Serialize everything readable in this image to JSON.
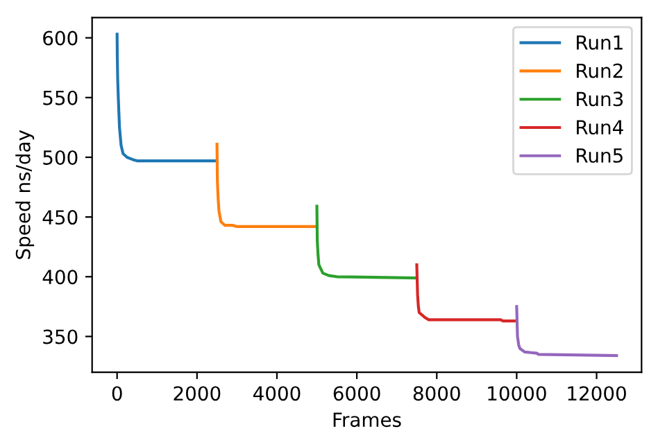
{
  "chart_data": {
    "type": "line",
    "xlabel": "Frames",
    "ylabel": "Speed ns/day",
    "xlim": [
      -625,
      13125
    ],
    "ylim": [
      320,
      617
    ],
    "xticks": [
      0,
      2000,
      4000,
      6000,
      8000,
      10000,
      12000
    ],
    "yticks": [
      350,
      400,
      450,
      500,
      550,
      600
    ],
    "grid": false,
    "legend": "top right",
    "series": [
      {
        "name": "Run1",
        "color": "#1f77b4",
        "x": [
          0,
          5,
          15,
          30,
          60,
          100,
          150,
          250,
          400,
          500,
          2500
        ],
        "values": [
          603,
          585,
          565,
          550,
          525,
          510,
          503,
          500,
          498,
          497,
          497
        ]
      },
      {
        "name": "Run2",
        "color": "#ff7f0e",
        "x": [
          2500,
          2510,
          2530,
          2550,
          2600,
          2700,
          2900,
          3000,
          5000
        ],
        "values": [
          511,
          480,
          465,
          455,
          446,
          443,
          443,
          442,
          442
        ]
      },
      {
        "name": "Run3",
        "color": "#2ca02c",
        "x": [
          5000,
          5010,
          5030,
          5050,
          5150,
          5300,
          5500,
          7500
        ],
        "values": [
          459,
          430,
          418,
          410,
          403,
          401,
          400,
          399
        ]
      },
      {
        "name": "Run4",
        "color": "#d62728",
        "x": [
          7500,
          7520,
          7540,
          7560,
          7700,
          7800,
          9600,
          9650,
          10000
        ],
        "values": [
          410,
          385,
          375,
          370,
          366,
          364,
          364,
          363,
          363
        ]
      },
      {
        "name": "Run5",
        "color": "#9467bd",
        "x": [
          10000,
          10020,
          10050,
          10080,
          10200,
          10500,
          10550,
          12500
        ],
        "values": [
          375,
          350,
          343,
          340,
          337,
          336,
          335,
          334
        ]
      }
    ]
  }
}
